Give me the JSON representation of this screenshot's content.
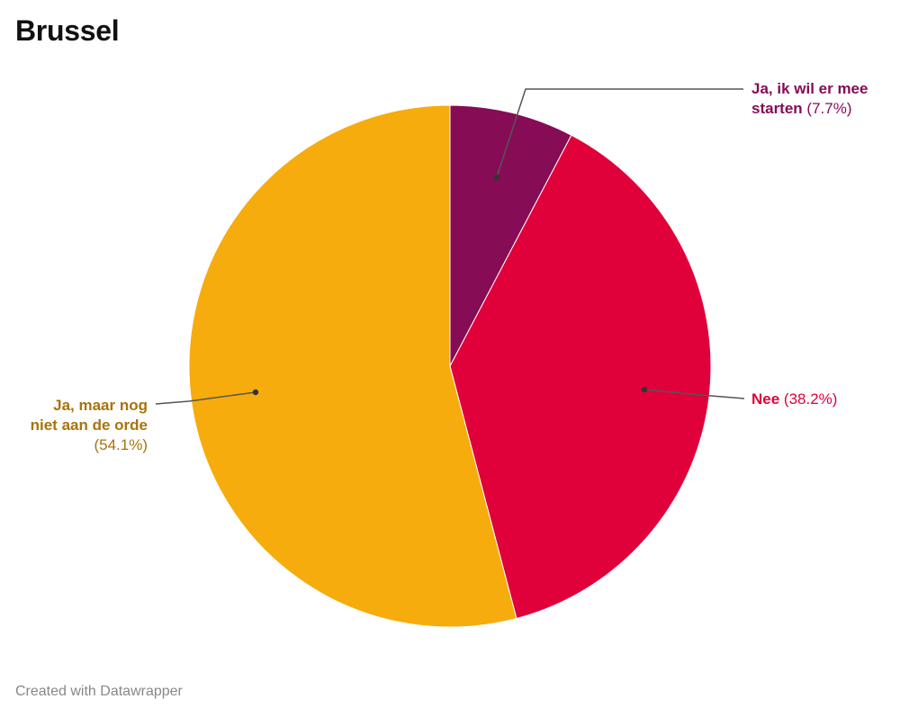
{
  "title": "Brussel",
  "footer": "Created with Datawrapper",
  "colors": {
    "start": "#860c56",
    "nee": "#e0003a",
    "maar": "#f7ac0d",
    "start_label": "#860c56",
    "nee_label": "#e0003a",
    "maar_label": "#a8730b",
    "leader": "#555555"
  },
  "labels": {
    "start": {
      "name_line1": "Ja, ik wil er mee",
      "name_line2": "starten",
      "pct": "(7.7%)"
    },
    "nee": {
      "name": "Nee",
      "pct": "(38.2%)"
    },
    "maar": {
      "name_line1": "Ja, maar nog",
      "name_line2": "niet aan de orde",
      "pct": "(54.1%)"
    }
  },
  "chart_data": {
    "type": "pie",
    "title": "Brussel",
    "categories": [
      "Ja, ik wil er mee starten",
      "Nee",
      "Ja, maar nog niet aan de orde"
    ],
    "values": [
      7.7,
      38.2,
      54.1
    ],
    "unit": "%",
    "colors": [
      "#860c56",
      "#e0003a",
      "#f7ac0d"
    ],
    "start_angle": "12 o'clock, clockwise",
    "legend": "none (direct labels with leader lines)",
    "source_note": "Created with Datawrapper"
  }
}
